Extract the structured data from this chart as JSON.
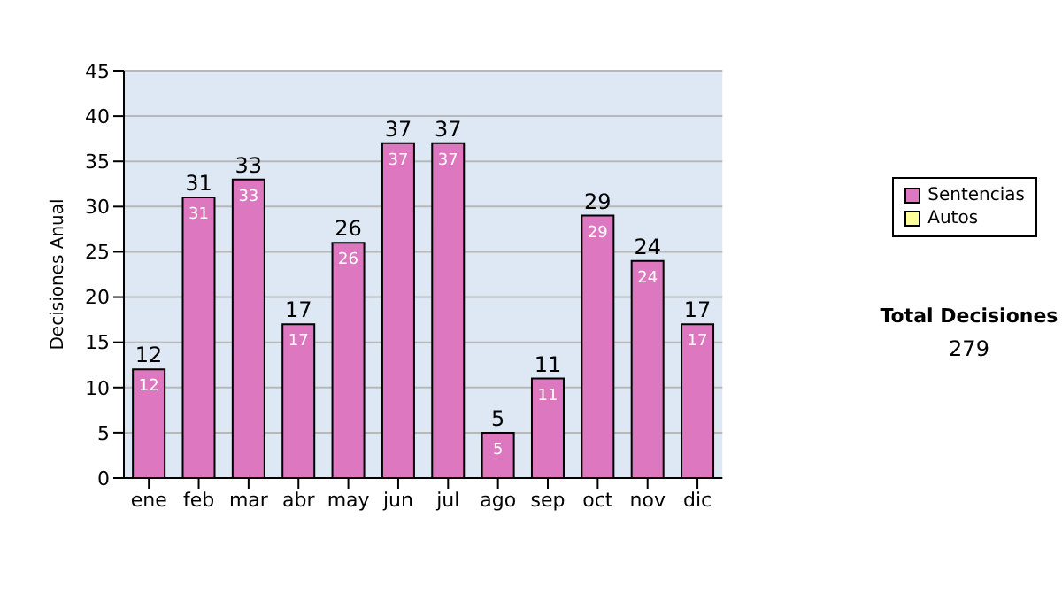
{
  "chart_data": {
    "type": "bar",
    "ylabel": "Decisiones Anual",
    "categories": [
      "ene",
      "feb",
      "mar",
      "abr",
      "may",
      "jun",
      "jul",
      "ago",
      "sep",
      "oct",
      "nov",
      "dic"
    ],
    "series": [
      {
        "name": "Sentencias",
        "color": "#dd77bf",
        "values": [
          12,
          31,
          33,
          17,
          26,
          37,
          37,
          5,
          11,
          29,
          24,
          17
        ],
        "value_labels": [
          "12",
          "31",
          "33",
          "17",
          "26",
          "37",
          "37",
          "5",
          "11",
          "29",
          "24",
          "17"
        ]
      },
      {
        "name": "Autos",
        "color": "#ffff99",
        "values": [
          0,
          0,
          0,
          0,
          0,
          0,
          0,
          0,
          0,
          0,
          0,
          0
        ]
      }
    ],
    "stacked": true,
    "totals": [
      "12",
      "31",
      "33",
      "17",
      "26",
      "37",
      "37",
      "5",
      "11",
      "29",
      "24",
      "17"
    ],
    "ylim": [
      0,
      45
    ],
    "yticks": [
      0,
      5,
      10,
      15,
      20,
      25,
      30,
      35,
      40,
      45
    ],
    "grid": "y",
    "legend": "right",
    "annotations": [
      "Total Decisiones",
      "279"
    ]
  }
}
